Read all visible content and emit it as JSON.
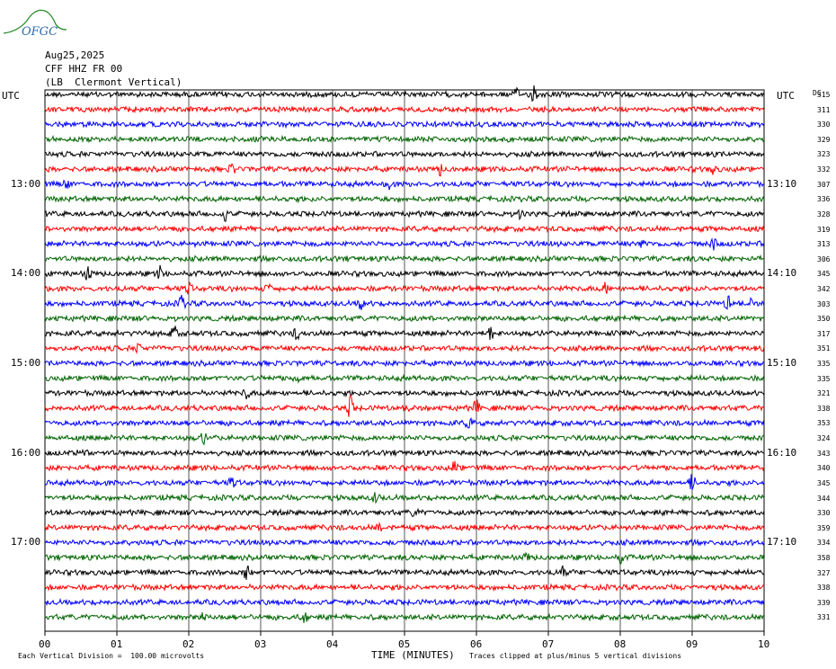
{
  "header": {
    "logo_text": "OFGC",
    "date": "Aug25,2025",
    "channel": "CFF HHZ FR 00",
    "station": "(LB  Clermont Vertical)"
  },
  "axis": {
    "left_tz": "UTC",
    "right_tz": "UTC",
    "dc_label": "DC",
    "xlabel": "TIME (MINUTES)",
    "x_ticks": [
      "00",
      "01",
      "02",
      "03",
      "04",
      "05",
      "06",
      "07",
      "08",
      "09",
      "10"
    ]
  },
  "left_time_labels": [
    "13:00",
    "14:00",
    "15:00",
    "16:00",
    "17:00"
  ],
  "right_time_labels": [
    "13:10",
    "14:10",
    "15:10",
    "16:10",
    "17:10"
  ],
  "footer": {
    "scale_note": "Each Vertical Division =  100.00 microvolts",
    "clip_note": "Traces clipped at plus/minus 5 vertical divisions"
  },
  "colors": {
    "black": "#000000",
    "red": "#ff0000",
    "blue": "#0000ff",
    "green": "#006400",
    "logo": "#2a8a2a"
  },
  "chart_data": {
    "type": "line",
    "description_type": "helicorder",
    "x_range_minutes": [
      0,
      10
    ],
    "trace_color_cycle": [
      "black",
      "red",
      "blue",
      "green"
    ],
    "dc_offsets": [
      315,
      311,
      330,
      329,
      323,
      332,
      307,
      336,
      328,
      319,
      313,
      306,
      345,
      342,
      303,
      350,
      317,
      351,
      335,
      335,
      321,
      338,
      353,
      324,
      343,
      340,
      345,
      344,
      330,
      359,
      334,
      358,
      327,
      338,
      339,
      331
    ],
    "events": [
      {
        "row": 0,
        "minute": 6.8,
        "amp": 2.0
      },
      {
        "row": 0,
        "minute": 6.55,
        "amp": 1.0
      },
      {
        "row": 5,
        "minute": 2.6,
        "amp": 1.0
      },
      {
        "row": 5,
        "minute": 5.5,
        "amp": 1.0
      },
      {
        "row": 5,
        "minute": 9.3,
        "amp": 1.0
      },
      {
        "row": 6,
        "minute": 4.8,
        "amp": 1.3
      },
      {
        "row": 6,
        "minute": 0.3,
        "amp": 1.0
      },
      {
        "row": 8,
        "minute": 2.5,
        "amp": 1.3
      },
      {
        "row": 8,
        "minute": 6.6,
        "amp": 1.0
      },
      {
        "row": 10,
        "minute": 8.3,
        "amp": 1.0
      },
      {
        "row": 10,
        "minute": 9.3,
        "amp": 1.0
      },
      {
        "row": 12,
        "minute": 0.6,
        "amp": 1.6
      },
      {
        "row": 12,
        "minute": 1.6,
        "amp": 1.2
      },
      {
        "row": 13,
        "minute": 2.0,
        "amp": 1.0
      },
      {
        "row": 13,
        "minute": 3.1,
        "amp": 1.0
      },
      {
        "row": 13,
        "minute": 7.8,
        "amp": 1.0
      },
      {
        "row": 14,
        "minute": 1.9,
        "amp": 1.4
      },
      {
        "row": 14,
        "minute": 4.4,
        "amp": 1.3
      },
      {
        "row": 14,
        "minute": 9.5,
        "amp": 1.5
      },
      {
        "row": 14,
        "minute": 9.8,
        "amp": 1.5
      },
      {
        "row": 16,
        "minute": 1.8,
        "amp": 1.5
      },
      {
        "row": 16,
        "minute": 3.5,
        "amp": 1.2
      },
      {
        "row": 16,
        "minute": 6.2,
        "amp": 1.4
      },
      {
        "row": 17,
        "minute": 1.3,
        "amp": 1.0
      },
      {
        "row": 19,
        "minute": 3.5,
        "amp": 1.0
      },
      {
        "row": 20,
        "minute": 2.8,
        "amp": 1.2
      },
      {
        "row": 21,
        "minute": 4.25,
        "amp": 2.2
      },
      {
        "row": 21,
        "minute": 6.0,
        "amp": 1.5
      },
      {
        "row": 21,
        "minute": 5.1,
        "amp": 1.0
      },
      {
        "row": 22,
        "minute": 5.9,
        "amp": 1.6
      },
      {
        "row": 23,
        "minute": 2.2,
        "amp": 1.0
      },
      {
        "row": 24,
        "minute": 0.5,
        "amp": 1.4
      },
      {
        "row": 25,
        "minute": 5.7,
        "amp": 1.3
      },
      {
        "row": 26,
        "minute": 2.6,
        "amp": 1.2
      },
      {
        "row": 26,
        "minute": 9.0,
        "amp": 1.5
      },
      {
        "row": 27,
        "minute": 4.6,
        "amp": 1.0
      },
      {
        "row": 28,
        "minute": 5.15,
        "amp": 1.0
      },
      {
        "row": 29,
        "minute": 4.65,
        "amp": 1.0
      },
      {
        "row": 31,
        "minute": 6.7,
        "amp": 1.0
      },
      {
        "row": 31,
        "minute": 8.0,
        "amp": 1.0
      },
      {
        "row": 32,
        "minute": 2.8,
        "amp": 1.6
      },
      {
        "row": 32,
        "minute": 7.2,
        "amp": 1.0
      },
      {
        "row": 35,
        "minute": 3.6,
        "amp": 1.3
      },
      {
        "row": 35,
        "minute": 2.2,
        "amp": 1.0
      }
    ]
  }
}
